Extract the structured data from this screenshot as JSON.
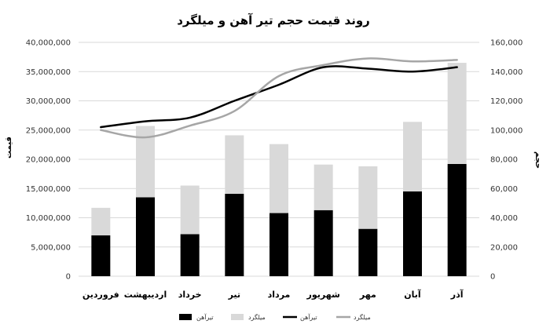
{
  "chart_data": {
    "type": "bar",
    "title": "روند قیمت حجم تیر آهن و میلگرد",
    "ylabel": "قیمت",
    "y2label": "حجم",
    "categories": [
      "فروردین",
      "اردیبهشت",
      "خرداد",
      "تیر",
      "مرداد",
      "شهریور",
      "مهر",
      "آبان",
      "آذر"
    ],
    "ylim": [
      0,
      40000000
    ],
    "y_ticks": [
      "0",
      "5,000,000",
      "10,000,000",
      "15,000,000",
      "20,000,000",
      "25,000,000",
      "30,000,000",
      "35,000,000",
      "40,000,000"
    ],
    "y2lim": [
      0,
      160000
    ],
    "y2_ticks": [
      "0",
      "20,000",
      "40,000",
      "60,000",
      "80,000",
      "100,000",
      "120,000",
      "140,000",
      "160,000"
    ],
    "stacked": true,
    "bar_series": [
      {
        "name": "تیرآهن",
        "color": "#000000",
        "values": [
          7000000,
          13500000,
          7200000,
          14100000,
          10800000,
          11300000,
          8100000,
          14500000,
          19200000
        ]
      },
      {
        "name": "میلگرد",
        "color": "#d9d9d9",
        "values": [
          4700000,
          12200000,
          8300000,
          10000000,
          11800000,
          7800000,
          10700000,
          11900000,
          17300000
        ]
      }
    ],
    "line_series": [
      {
        "name": "تیرآهن",
        "color": "#000000",
        "axis": "right",
        "values": [
          102000,
          106000,
          108500,
          120000,
          131000,
          143000,
          142000,
          140000,
          143000
        ]
      },
      {
        "name": "میلگرد",
        "color": "#a6a6a6",
        "axis": "right",
        "values": [
          100000,
          95000,
          103000,
          113000,
          137000,
          144500,
          149000,
          147000,
          148000
        ]
      }
    ],
    "legend_position": "bottom",
    "grid": true
  }
}
